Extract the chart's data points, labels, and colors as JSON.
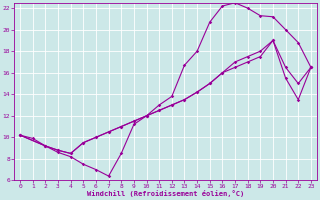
{
  "xlabel": "Windchill (Refroidissement éolien,°C)",
  "bg_color": "#cce8e8",
  "line_color": "#990099",
  "grid_color": "#ffffff",
  "xlim": [
    -0.5,
    23.5
  ],
  "ylim": [
    6,
    22.5
  ],
  "xticks": [
    0,
    1,
    2,
    3,
    4,
    5,
    6,
    7,
    8,
    9,
    10,
    11,
    12,
    13,
    14,
    15,
    16,
    17,
    18,
    19,
    20,
    21,
    22,
    23
  ],
  "yticks": [
    6,
    8,
    10,
    12,
    14,
    16,
    18,
    20,
    22
  ],
  "line1_x": [
    0,
    1,
    2,
    3,
    4,
    5,
    6,
    7,
    8,
    9,
    10,
    11,
    12,
    13,
    14,
    15,
    16,
    17,
    18,
    19,
    20,
    21,
    22,
    23
  ],
  "line1_y": [
    10.2,
    9.9,
    9.2,
    8.6,
    8.2,
    7.5,
    7.0,
    6.4,
    8.5,
    11.2,
    12.0,
    13.0,
    13.8,
    16.7,
    18.0,
    20.7,
    22.2,
    22.5,
    22.0,
    21.3,
    21.2,
    20.0,
    18.8,
    16.5
  ],
  "line2_x": [
    0,
    2,
    3,
    4,
    5,
    6,
    7,
    8,
    9,
    10,
    11,
    12,
    13,
    14,
    15,
    16,
    17,
    18,
    19,
    20,
    21,
    22,
    23
  ],
  "line2_y": [
    10.2,
    9.2,
    8.8,
    8.5,
    9.5,
    10.0,
    10.5,
    11.0,
    11.5,
    12.0,
    12.5,
    13.0,
    13.5,
    14.2,
    15.0,
    16.0,
    17.0,
    17.5,
    18.0,
    19.0,
    16.5,
    15.0,
    16.5
  ],
  "line3_x": [
    0,
    2,
    3,
    4,
    5,
    6,
    7,
    8,
    9,
    10,
    11,
    12,
    13,
    14,
    15,
    16,
    17,
    18,
    19,
    20,
    21,
    22,
    23
  ],
  "line3_y": [
    10.2,
    9.2,
    8.8,
    8.5,
    9.5,
    10.0,
    10.5,
    11.0,
    11.5,
    12.0,
    12.5,
    13.0,
    13.5,
    14.2,
    15.0,
    16.0,
    16.5,
    17.0,
    17.5,
    19.0,
    15.5,
    13.5,
    16.5
  ]
}
